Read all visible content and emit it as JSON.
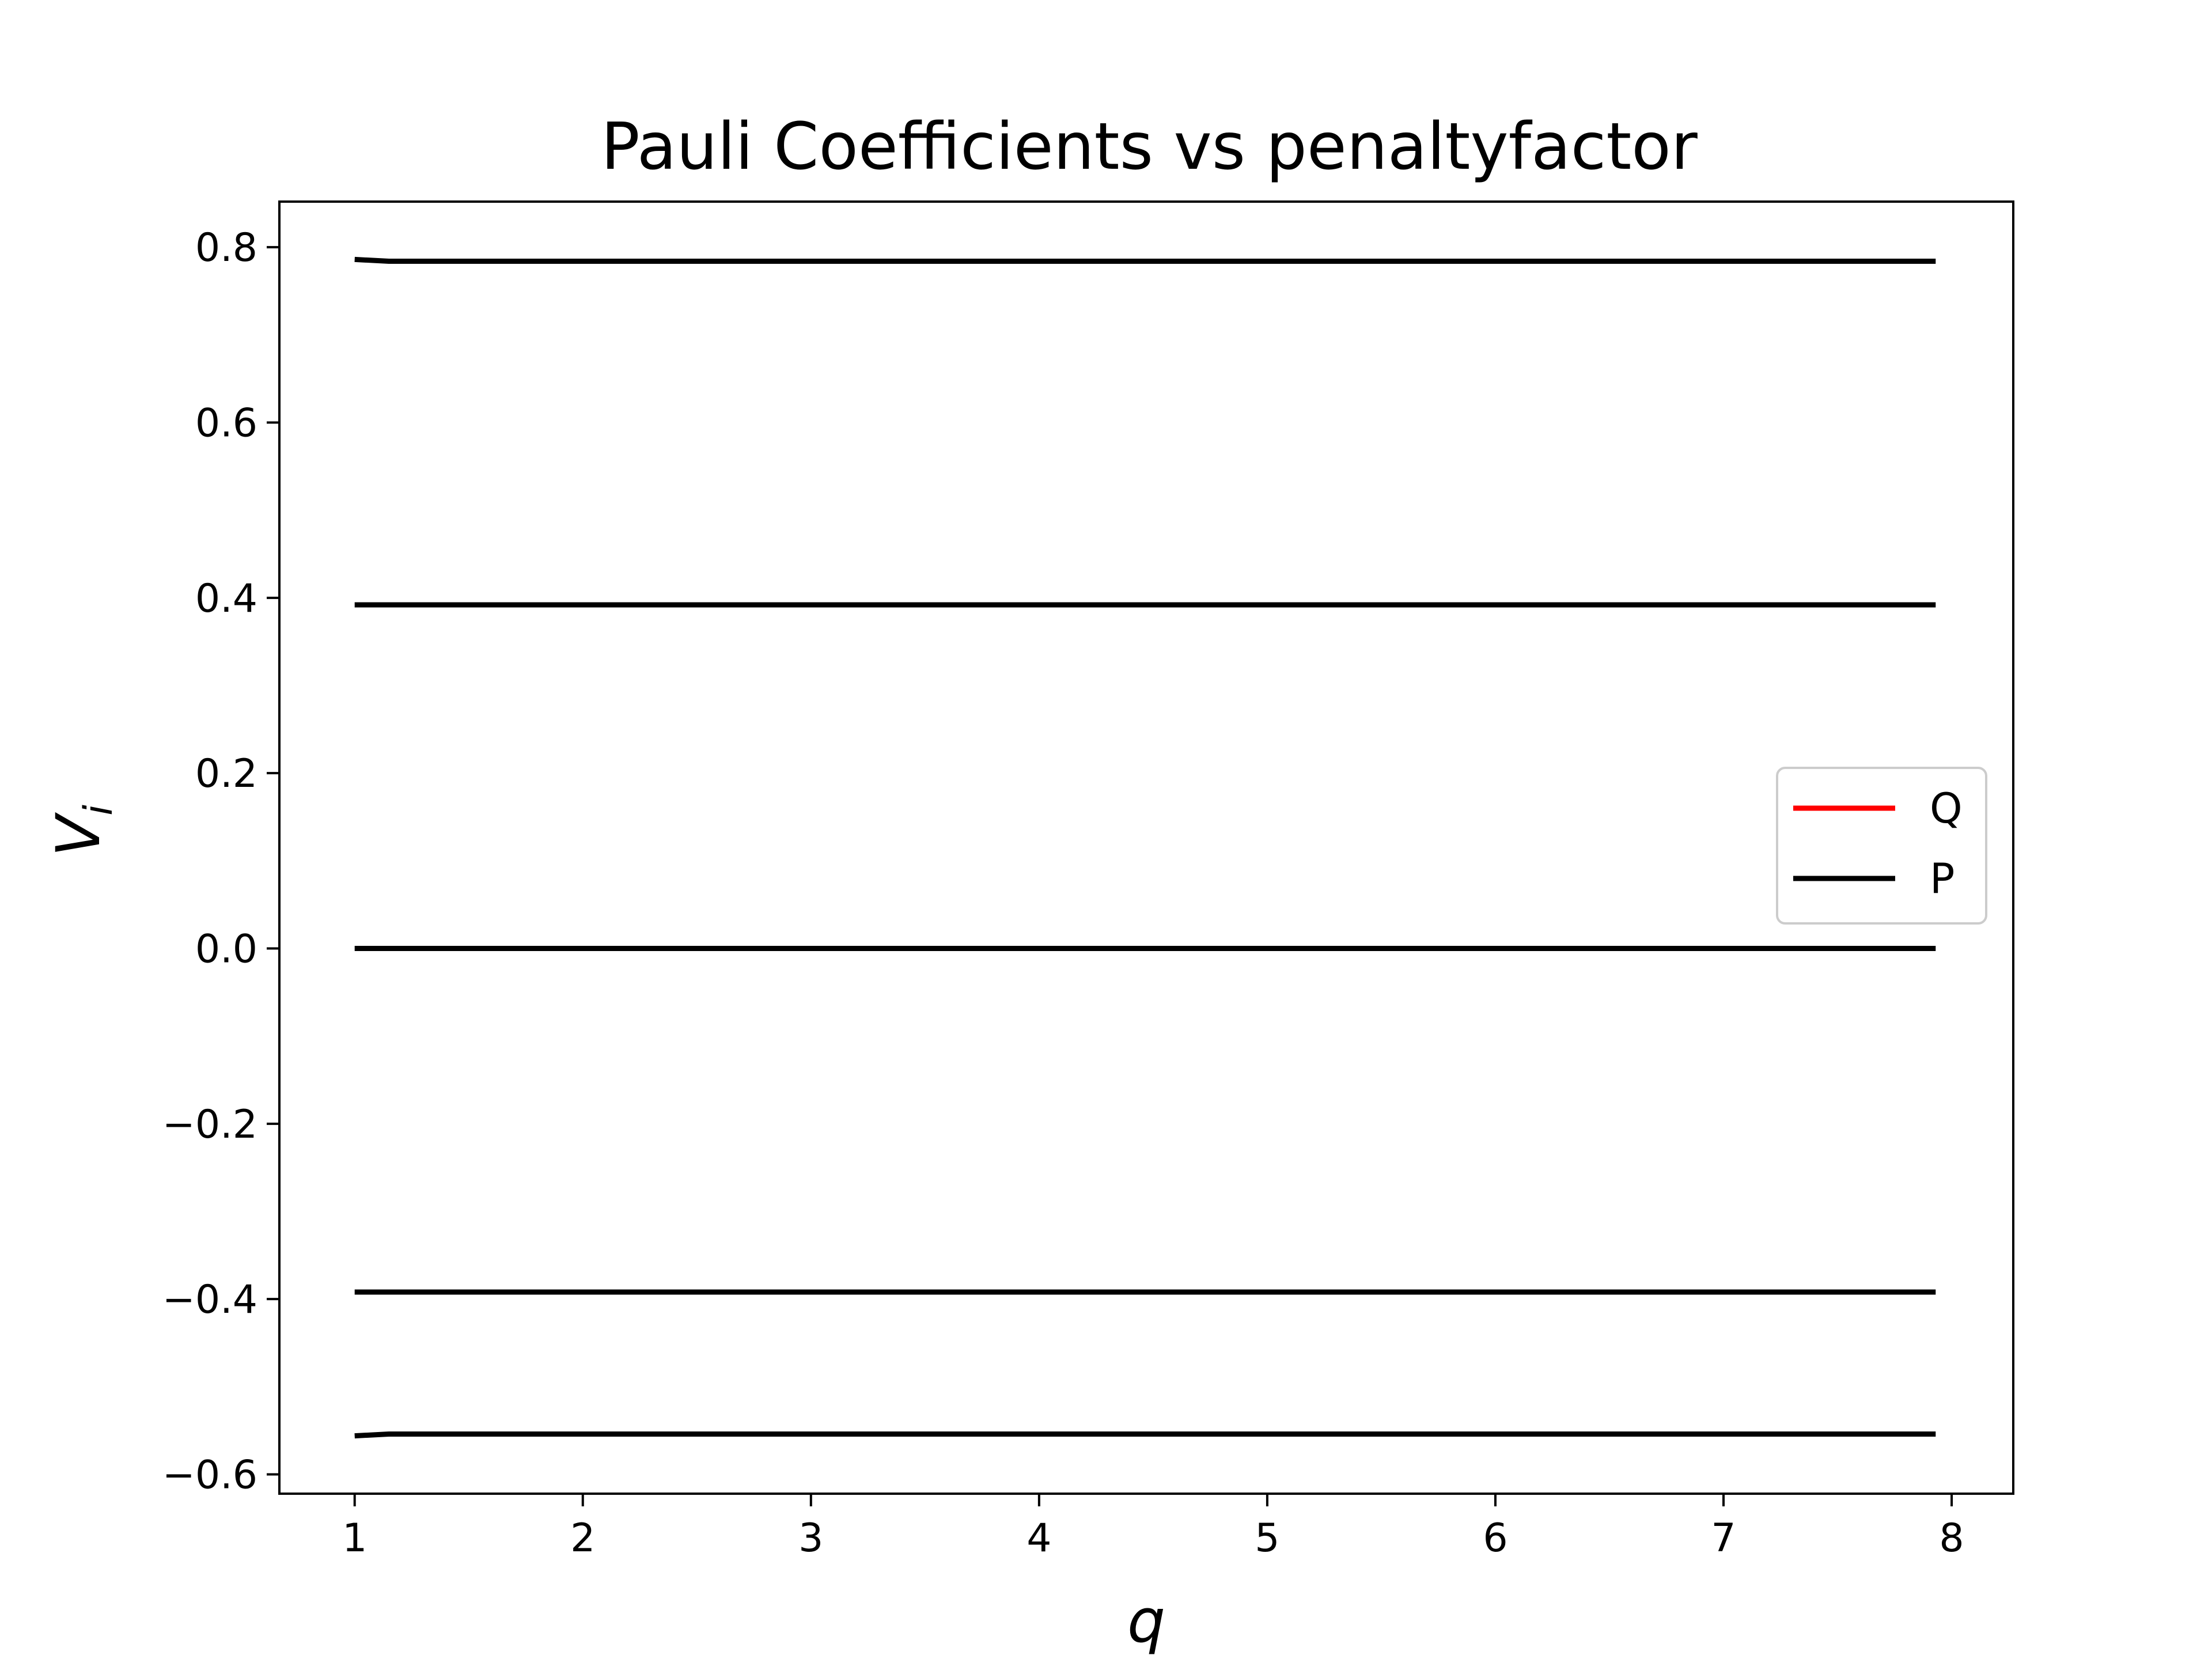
{
  "chart_data": {
    "type": "line",
    "title": "Pauli Coefficients vs penaltyfactor",
    "xlabel": "q",
    "ylabel": "V",
    "ylabel_subscript": "i",
    "xlim": [
      0.67,
      8.27
    ],
    "ylim": [
      -0.622,
      0.852
    ],
    "xticks": [
      {
        "value": 1,
        "label": "1"
      },
      {
        "value": 2,
        "label": "2"
      },
      {
        "value": 3,
        "label": "3"
      },
      {
        "value": 4,
        "label": "4"
      },
      {
        "value": 5,
        "label": "5"
      },
      {
        "value": 6,
        "label": "6"
      },
      {
        "value": 7,
        "label": "7"
      },
      {
        "value": 8,
        "label": "8"
      }
    ],
    "yticks": [
      {
        "value": 0.8,
        "label": "0.8"
      },
      {
        "value": 0.6,
        "label": "0.6"
      },
      {
        "value": 0.4,
        "label": "0.4"
      },
      {
        "value": 0.2,
        "label": "0.2"
      },
      {
        "value": 0.0,
        "label": "0.0"
      },
      {
        "value": -0.2,
        "label": "−0.2"
      },
      {
        "value": -0.4,
        "label": "−0.4"
      },
      {
        "value": -0.6,
        "label": "−0.6"
      }
    ],
    "grid": false,
    "legend_position": "center-right",
    "legend": [
      {
        "label": "Q",
        "color": "#ff0000"
      },
      {
        "label": "P",
        "color": "#000000"
      }
    ],
    "series": [
      {
        "color": "#000000",
        "x": [
          1.0,
          1.15,
          1.5,
          2.0,
          3.0,
          4.0,
          5.0,
          6.0,
          7.0,
          7.93
        ],
        "y": [
          0.786,
          0.784,
          0.784,
          0.784,
          0.784,
          0.784,
          0.784,
          0.784,
          0.784,
          0.784
        ]
      },
      {
        "color": "#000000",
        "x": [
          1.0,
          2.0,
          3.0,
          4.0,
          5.0,
          6.0,
          7.0,
          7.93
        ],
        "y": [
          0.392,
          0.392,
          0.392,
          0.392,
          0.392,
          0.392,
          0.392,
          0.392
        ]
      },
      {
        "color": "#000000",
        "x": [
          1.0,
          2.0,
          3.0,
          4.0,
          5.0,
          6.0,
          7.0,
          7.93
        ],
        "y": [
          0.0,
          0.0,
          0.0,
          0.0,
          0.0,
          0.0,
          0.0,
          0.0
        ]
      },
      {
        "color": "#000000",
        "x": [
          1.0,
          2.0,
          3.0,
          4.0,
          5.0,
          6.0,
          7.0,
          7.93
        ],
        "y": [
          -0.392,
          -0.392,
          -0.392,
          -0.392,
          -0.392,
          -0.392,
          -0.392,
          -0.392
        ]
      },
      {
        "color": "#000000",
        "x": [
          1.0,
          1.15,
          1.5,
          2.0,
          3.0,
          4.0,
          5.0,
          6.0,
          7.0,
          7.93
        ],
        "y": [
          -0.556,
          -0.554,
          -0.554,
          -0.554,
          -0.554,
          -0.554,
          -0.554,
          -0.554,
          -0.554,
          -0.554
        ]
      }
    ]
  }
}
